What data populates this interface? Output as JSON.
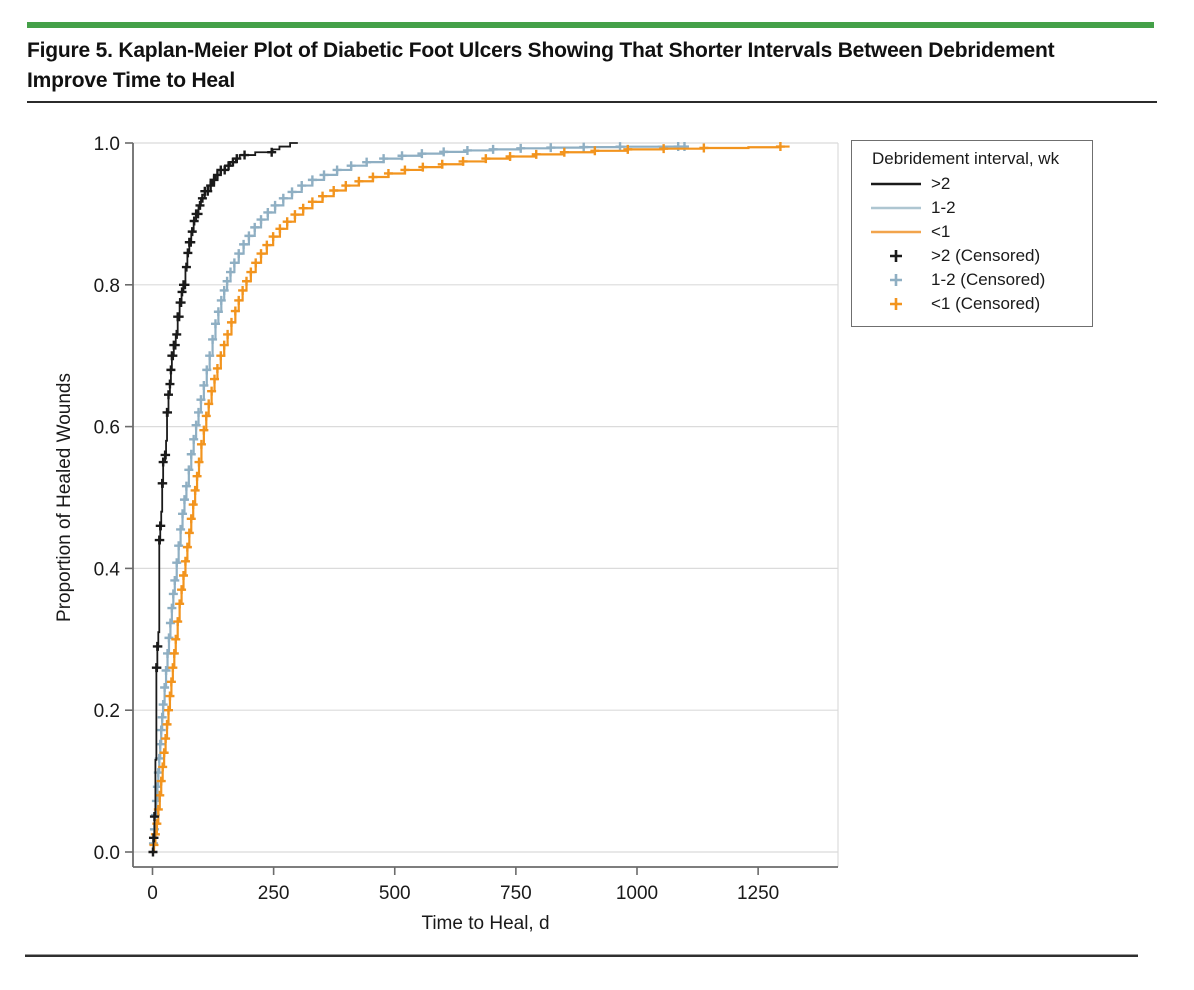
{
  "figure": {
    "title": "Figure 5. Kaplan-Meier Plot of Diabetic Foot Ulcers Showing That Shorter Intervals Between Debridement Improve Time to Heal"
  },
  "colors": {
    "accent_green": "#44a048",
    "series_gt2": "#1a1a1a",
    "series_1to2": "#8fafc3",
    "series_lt1": "#f2941e",
    "grid": "#dbdbdb",
    "axis": "#6b6b6b",
    "text": "#1a1a1a"
  },
  "legend": {
    "title": "Debridement interval, wk",
    "lines": [
      {
        "id": "gt2",
        "label": ">2"
      },
      {
        "id": "1to2",
        "label": "1-2"
      },
      {
        "id": "lt1",
        "label": "<1"
      }
    ],
    "markers": [
      {
        "id": "gt2",
        "label": ">2 (Censored)"
      },
      {
        "id": "1to2",
        "label": "1-2 (Censored)"
      },
      {
        "id": "lt1",
        "label": "<1 (Censored)"
      }
    ]
  },
  "chart_data": {
    "type": "line",
    "subtype": "kaplan-meier-step",
    "xlabel": "Time to Heal, d",
    "ylabel": "Proportion of Healed Wounds",
    "x_ticks": [
      0,
      250,
      500,
      750,
      1000,
      1250
    ],
    "y_ticks": [
      "1.0",
      "0.8",
      "0.6",
      "0.4",
      "0.2",
      "0.0"
    ],
    "xlim": [
      -40,
      1415
    ],
    "ylim": [
      0,
      1
    ],
    "grid": "horizontal",
    "legend_position": "outside-right",
    "series": [
      {
        "id": "gt2",
        "name": ">2",
        "color_key": "series_gt2",
        "end_day": 300,
        "points": [
          [
            0,
            0
          ],
          [
            2,
            0.02
          ],
          [
            4,
            0.05
          ],
          [
            6,
            0.13
          ],
          [
            8,
            0.26
          ],
          [
            10,
            0.29
          ],
          [
            12,
            0.31
          ],
          [
            14,
            0.44
          ],
          [
            16,
            0.46
          ],
          [
            18,
            0.48
          ],
          [
            20,
            0.52
          ],
          [
            22,
            0.55
          ],
          [
            26,
            0.56
          ],
          [
            28,
            0.58
          ],
          [
            30,
            0.62
          ],
          [
            33,
            0.645
          ],
          [
            36,
            0.66
          ],
          [
            38,
            0.68
          ],
          [
            40,
            0.7
          ],
          [
            44,
            0.715
          ],
          [
            48,
            0.73
          ],
          [
            52,
            0.755
          ],
          [
            56,
            0.775
          ],
          [
            60,
            0.79
          ],
          [
            64,
            0.8
          ],
          [
            68,
            0.825
          ],
          [
            72,
            0.845
          ],
          [
            76,
            0.86
          ],
          [
            80,
            0.875
          ],
          [
            85,
            0.89
          ],
          [
            90,
            0.9
          ],
          [
            95,
            0.912
          ],
          [
            100,
            0.922
          ],
          [
            108,
            0.932
          ],
          [
            115,
            0.94
          ],
          [
            123,
            0.948
          ],
          [
            130,
            0.955
          ],
          [
            140,
            0.962
          ],
          [
            150,
            0.968
          ],
          [
            160,
            0.973
          ],
          [
            172,
            0.978
          ],
          [
            180,
            0.983
          ],
          [
            212,
            0.987
          ],
          [
            248,
            0.991
          ],
          [
            262,
            0.995
          ],
          [
            284,
            1.0
          ]
        ],
        "censor_days": [
          1,
          2,
          3,
          4,
          8,
          9,
          10,
          11,
          14,
          15,
          16,
          17,
          20,
          21,
          22,
          26,
          27,
          30,
          31,
          33,
          36,
          38,
          40,
          42,
          44,
          47,
          50,
          52,
          55,
          57,
          59,
          61,
          64,
          67,
          70,
          73,
          76,
          79,
          82,
          86,
          90,
          94,
          98,
          103,
          108,
          114,
          120,
          127,
          134,
          141,
          149,
          157,
          166,
          174,
          190,
          246
        ]
      },
      {
        "id": "1to2",
        "name": "1-2",
        "color_key": "series_1to2",
        "end_day": 1105,
        "points": [
          [
            0,
            0
          ],
          [
            2,
            0.012
          ],
          [
            4,
            0.032
          ],
          [
            6,
            0.052
          ],
          [
            8,
            0.072
          ],
          [
            10,
            0.092
          ],
          [
            12,
            0.112
          ],
          [
            14,
            0.132
          ],
          [
            16,
            0.152
          ],
          [
            18,
            0.172
          ],
          [
            20,
            0.19
          ],
          [
            22,
            0.208
          ],
          [
            25,
            0.232
          ],
          [
            28,
            0.256
          ],
          [
            31,
            0.28
          ],
          [
            34,
            0.302
          ],
          [
            37,
            0.323
          ],
          [
            40,
            0.344
          ],
          [
            43,
            0.364
          ],
          [
            46,
            0.383
          ],
          [
            50,
            0.408
          ],
          [
            54,
            0.432
          ],
          [
            58,
            0.455
          ],
          [
            62,
            0.477
          ],
          [
            66,
            0.497
          ],
          [
            70,
            0.516
          ],
          [
            75,
            0.539
          ],
          [
            80,
            0.561
          ],
          [
            85,
            0.582
          ],
          [
            90,
            0.602
          ],
          [
            95,
            0.62
          ],
          [
            100,
            0.638
          ],
          [
            106,
            0.658
          ],
          [
            112,
            0.68
          ],
          [
            118,
            0.7
          ],
          [
            124,
            0.723
          ],
          [
            130,
            0.745
          ],
          [
            136,
            0.762
          ],
          [
            142,
            0.778
          ],
          [
            148,
            0.792
          ],
          [
            154,
            0.805
          ],
          [
            161,
            0.818
          ],
          [
            169,
            0.831
          ],
          [
            178,
            0.844
          ],
          [
            188,
            0.857
          ],
          [
            199,
            0.869
          ],
          [
            211,
            0.881
          ],
          [
            224,
            0.892
          ],
          [
            238,
            0.902
          ],
          [
            253,
            0.912
          ],
          [
            270,
            0.922
          ],
          [
            288,
            0.931
          ],
          [
            308,
            0.94
          ],
          [
            330,
            0.948
          ],
          [
            354,
            0.955
          ],
          [
            381,
            0.962
          ],
          [
            410,
            0.968
          ],
          [
            442,
            0.973
          ],
          [
            477,
            0.978
          ],
          [
            515,
            0.982
          ],
          [
            556,
            0.985
          ],
          [
            601,
            0.9875
          ],
          [
            650,
            0.9895
          ],
          [
            703,
            0.991
          ],
          [
            760,
            0.9925
          ],
          [
            822,
            0.9935
          ],
          [
            890,
            0.9942
          ],
          [
            965,
            0.9948
          ],
          [
            1045,
            0.995
          ]
        ],
        "censor_days": [
          2,
          4,
          6,
          8,
          10,
          12,
          14,
          16,
          18,
          20,
          22,
          25,
          28,
          31,
          34,
          37,
          40,
          43,
          46,
          50,
          54,
          58,
          62,
          66,
          70,
          75,
          80,
          85,
          90,
          95,
          100,
          106,
          112,
          118,
          124,
          130,
          136,
          142,
          148,
          154,
          161,
          169,
          178,
          188,
          199,
          211,
          224,
          238,
          253,
          270,
          288,
          308,
          330,
          354,
          381,
          410,
          442,
          477,
          515,
          556,
          601,
          650,
          703,
          760,
          822,
          890,
          965,
          1085,
          1098
        ]
      },
      {
        "id": "lt1",
        "name": "<1",
        "color_key": "series_lt1",
        "end_day": 1315,
        "points": [
          [
            0,
            0
          ],
          [
            3,
            0.01
          ],
          [
            6,
            0.025
          ],
          [
            9,
            0.04
          ],
          [
            12,
            0.06
          ],
          [
            15,
            0.08
          ],
          [
            18,
            0.1
          ],
          [
            21,
            0.12
          ],
          [
            24,
            0.14
          ],
          [
            27,
            0.16
          ],
          [
            30,
            0.18
          ],
          [
            33,
            0.2
          ],
          [
            36,
            0.22
          ],
          [
            39,
            0.24
          ],
          [
            42,
            0.26
          ],
          [
            45,
            0.28
          ],
          [
            48,
            0.3
          ],
          [
            52,
            0.325
          ],
          [
            56,
            0.35
          ],
          [
            60,
            0.37
          ],
          [
            64,
            0.39
          ],
          [
            68,
            0.41
          ],
          [
            72,
            0.43
          ],
          [
            76,
            0.45
          ],
          [
            80,
            0.47
          ],
          [
            84,
            0.49
          ],
          [
            88,
            0.51
          ],
          [
            92,
            0.53
          ],
          [
            96,
            0.55
          ],
          [
            101,
            0.575
          ],
          [
            106,
            0.595
          ],
          [
            111,
            0.615
          ],
          [
            116,
            0.632
          ],
          [
            122,
            0.65
          ],
          [
            128,
            0.667
          ],
          [
            134,
            0.682
          ],
          [
            141,
            0.7
          ],
          [
            148,
            0.715
          ],
          [
            155,
            0.73
          ],
          [
            163,
            0.747
          ],
          [
            171,
            0.763
          ],
          [
            178,
            0.778
          ],
          [
            186,
            0.792
          ],
          [
            194,
            0.805
          ],
          [
            203,
            0.818
          ],
          [
            213,
            0.831
          ],
          [
            224,
            0.844
          ],
          [
            236,
            0.856
          ],
          [
            249,
            0.868
          ],
          [
            263,
            0.879
          ],
          [
            278,
            0.889
          ],
          [
            294,
            0.899
          ],
          [
            311,
            0.908
          ],
          [
            330,
            0.917
          ],
          [
            351,
            0.925
          ],
          [
            374,
            0.933
          ],
          [
            399,
            0.94
          ],
          [
            426,
            0.946
          ],
          [
            455,
            0.952
          ],
          [
            487,
            0.957
          ],
          [
            521,
            0.962
          ],
          [
            558,
            0.966
          ],
          [
            598,
            0.97
          ],
          [
            641,
            0.974
          ],
          [
            688,
            0.978
          ],
          [
            738,
            0.981
          ],
          [
            792,
            0.984
          ],
          [
            850,
            0.987
          ],
          [
            913,
            0.989
          ],
          [
            981,
            0.991
          ],
          [
            1055,
            0.992
          ],
          [
            1138,
            0.993
          ],
          [
            1230,
            0.994
          ],
          [
            1296,
            0.995
          ]
        ],
        "censor_days": [
          3,
          6,
          9,
          12,
          15,
          18,
          21,
          24,
          27,
          30,
          33,
          36,
          39,
          42,
          45,
          48,
          52,
          56,
          60,
          64,
          68,
          72,
          76,
          80,
          84,
          88,
          92,
          96,
          101,
          106,
          111,
          116,
          122,
          128,
          134,
          141,
          148,
          155,
          163,
          171,
          178,
          186,
          194,
          203,
          213,
          224,
          236,
          249,
          263,
          278,
          294,
          311,
          330,
          351,
          374,
          399,
          426,
          455,
          487,
          521,
          558,
          598,
          641,
          688,
          738,
          792,
          850,
          913,
          981,
          1055,
          1138,
          1296
        ]
      }
    ]
  }
}
